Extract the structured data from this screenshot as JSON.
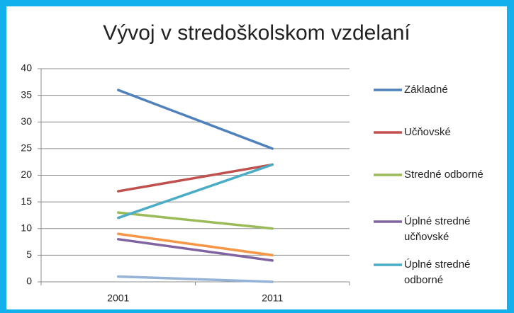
{
  "chart_data": {
    "type": "line",
    "title": "Vývoj v stredoškolskom vzdelaní",
    "categories": [
      "2001",
      "2011"
    ],
    "series": [
      {
        "name": "Základné",
        "color": "#4f81bd",
        "values": [
          36,
          25
        ]
      },
      {
        "name": "Učňovské",
        "color": "#c0504d",
        "values": [
          17,
          22
        ]
      },
      {
        "name": "Stredné odborné",
        "color": "#9bbb59",
        "values": [
          13,
          10
        ]
      },
      {
        "name": "Úplné stredné učňovské",
        "color": "#8064a2",
        "values": [
          8,
          4
        ]
      },
      {
        "name": "Úplné stredné odborné",
        "color": "#4bacc6",
        "values": [
          12,
          22
        ]
      },
      {
        "color": "#f79646",
        "values": [
          9,
          5
        ]
      },
      {
        "color": "#95b3d7",
        "values": [
          1,
          0
        ]
      }
    ],
    "ylim": [
      0,
      40
    ],
    "yticks": [
      0,
      5,
      10,
      15,
      20,
      25,
      30,
      35,
      40
    ],
    "grid": true,
    "legend": "right"
  }
}
